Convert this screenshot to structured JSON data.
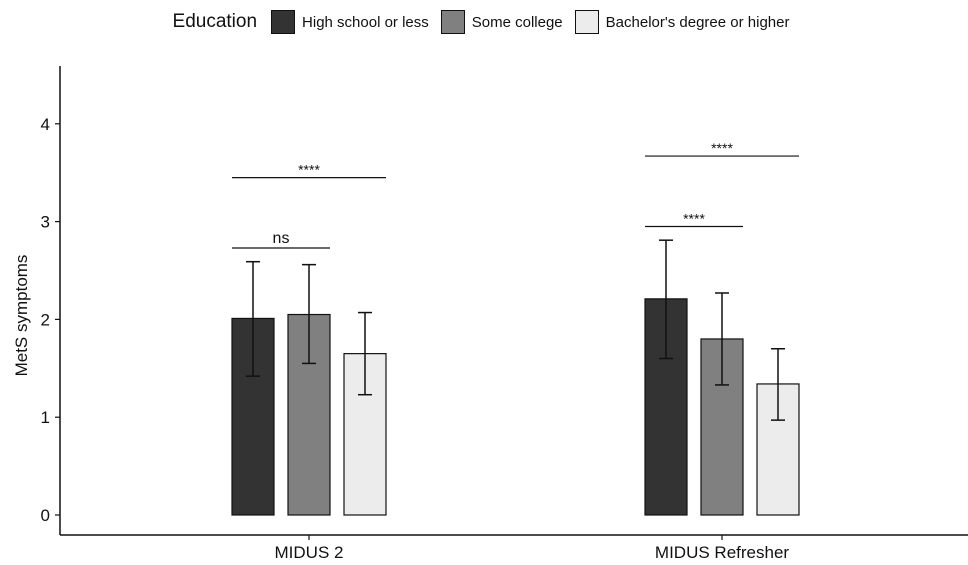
{
  "chart_data": {
    "type": "bar",
    "legend_title": "Education",
    "legend_position": "top",
    "ylabel": "MetS symptoms",
    "xlabel": "",
    "ylim": [
      0,
      4.6
    ],
    "yticks": [
      0,
      1,
      2,
      3,
      4
    ],
    "grid": false,
    "categories": [
      "MIDUS 2",
      "MIDUS Refresher"
    ],
    "series": [
      {
        "name": "High school or less",
        "color": "#333333",
        "values": [
          2.01,
          2.21
        ],
        "error_low": [
          1.42,
          1.6
        ],
        "error_high": [
          2.59,
          2.81
        ]
      },
      {
        "name": "Some college",
        "color": "#808080",
        "values": [
          2.05,
          1.8
        ],
        "error_low": [
          1.55,
          1.33
        ],
        "error_high": [
          2.56,
          2.27
        ]
      },
      {
        "name": "Bachelor's degree or higher",
        "color": "#ececec",
        "values": [
          1.65,
          1.34
        ],
        "error_low": [
          1.23,
          0.97
        ],
        "error_high": [
          2.07,
          1.7
        ]
      }
    ],
    "annotations": [
      {
        "category": 0,
        "from_series": 0,
        "to_series": 1,
        "y": 2.73,
        "label": "ns"
      },
      {
        "category": 0,
        "from_series": 0,
        "to_series": 2,
        "y": 3.45,
        "label": "****"
      },
      {
        "category": 1,
        "from_series": 0,
        "to_series": 1,
        "y": 2.95,
        "label": "****"
      },
      {
        "category": 1,
        "from_series": 0,
        "to_series": 2,
        "y": 3.67,
        "label": "****"
      }
    ]
  }
}
